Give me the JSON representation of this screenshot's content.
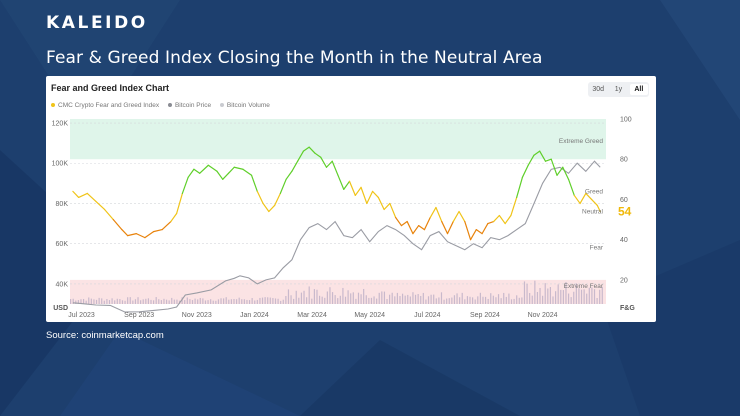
{
  "brand": {
    "logo_text": "KALEIDO"
  },
  "slide": {
    "headline": "Fear & Greed Index Closing the Month in the Neutral Area",
    "source": "Source: coinmarketcap.com"
  },
  "colors": {
    "background": "#1d3f6e",
    "fgi_line_low": "#e8830c",
    "fgi_line_mid": "#f0c419",
    "fgi_line_high": "#5fcf2a",
    "btc_price": "#9a9ca4",
    "btc_volume": "#c9b9cc",
    "extreme_greed_band": "#dff5ea",
    "extreme_fear_band": "#fbe3e4",
    "current_value": "#f0b90b"
  },
  "chart": {
    "title": "Fear and Greed Index Chart",
    "timeframes": [
      "30d",
      "1y",
      "All"
    ],
    "active_timeframe": "All",
    "legend": [
      {
        "label": "CMC Crypto Fear and Greed Index",
        "color": "#f0c419"
      },
      {
        "label": "Bitcoin Price",
        "color": "#8a8c93"
      },
      {
        "label": "Bitcoin Volume",
        "color": "#c9cbd0"
      }
    ],
    "current_value": "54",
    "left_axis_title": "USD",
    "right_axis_title": "F&G"
  },
  "chart_data": {
    "type": "line",
    "x_tick_labels": [
      "Jul 2023",
      "Sep 2023",
      "Nov 2023",
      "Jan 2024",
      "Mar 2024",
      "May 2024",
      "Jul 2024",
      "Sep 2024",
      "Nov 2024"
    ],
    "x_tick_months": [
      1,
      3,
      5,
      7,
      9,
      11,
      13,
      15,
      17
    ],
    "x_range_months": [
      0.6,
      19.2
    ],
    "y_left": {
      "label": "USD",
      "range": [
        30000,
        122000
      ],
      "ticks": [
        40000,
        60000,
        80000,
        100000,
        120000
      ],
      "tick_labels": [
        "40K",
        "60K",
        "80K",
        "100K",
        "120K"
      ]
    },
    "y_right": {
      "label": "F&G",
      "range": [
        8,
        100
      ],
      "ticks": [
        20,
        40,
        60,
        80,
        100
      ],
      "tick_labels": [
        "20",
        "40",
        "60",
        "80",
        "100"
      ]
    },
    "zones": [
      {
        "label": "Extreme Greed",
        "from": 80,
        "to": 100
      },
      {
        "label": "Greed",
        "at": 65
      },
      {
        "label": "Neutral",
        "at": 55
      },
      {
        "label": "Fear",
        "at": 38
      },
      {
        "label": "Extreme Fear",
        "from": 8,
        "to": 20
      }
    ],
    "series": [
      {
        "name": "CMC Crypto Fear and Greed Index",
        "axis": "right",
        "points": [
          [
            0.7,
            64
          ],
          [
            0.9,
            61
          ],
          [
            1.2,
            63
          ],
          [
            1.5,
            59
          ],
          [
            1.8,
            55
          ],
          [
            2.1,
            50
          ],
          [
            2.4,
            45
          ],
          [
            2.6,
            42
          ],
          [
            2.9,
            43
          ],
          [
            3.2,
            41
          ],
          [
            3.5,
            44
          ],
          [
            3.8,
            45
          ],
          [
            4.1,
            49
          ],
          [
            4.3,
            53
          ],
          [
            4.5,
            63
          ],
          [
            4.7,
            71
          ],
          [
            4.9,
            75
          ],
          [
            5.1,
            73
          ],
          [
            5.4,
            77
          ],
          [
            5.7,
            74
          ],
          [
            5.9,
            70
          ],
          [
            6.1,
            73
          ],
          [
            6.3,
            76
          ],
          [
            6.6,
            75
          ],
          [
            6.9,
            72
          ],
          [
            7.1,
            64
          ],
          [
            7.3,
            58
          ],
          [
            7.5,
            54
          ],
          [
            7.7,
            57
          ],
          [
            7.9,
            63
          ],
          [
            8.1,
            70
          ],
          [
            8.3,
            74
          ],
          [
            8.5,
            79
          ],
          [
            8.7,
            84
          ],
          [
            8.9,
            86
          ],
          [
            9.1,
            83
          ],
          [
            9.3,
            81
          ],
          [
            9.5,
            76
          ],
          [
            9.7,
            79
          ],
          [
            9.9,
            72
          ],
          [
            10.1,
            65
          ],
          [
            10.3,
            69
          ],
          [
            10.5,
            62
          ],
          [
            10.7,
            66
          ],
          [
            10.9,
            58
          ],
          [
            11.1,
            64
          ],
          [
            11.3,
            61
          ],
          [
            11.5,
            55
          ],
          [
            11.7,
            58
          ],
          [
            11.9,
            51
          ],
          [
            12.1,
            47
          ],
          [
            12.3,
            49
          ],
          [
            12.5,
            43
          ],
          [
            12.7,
            47
          ],
          [
            12.9,
            45
          ],
          [
            13.1,
            51
          ],
          [
            13.3,
            56
          ],
          [
            13.5,
            49
          ],
          [
            13.7,
            43
          ],
          [
            13.9,
            49
          ],
          [
            14.1,
            54
          ],
          [
            14.3,
            49
          ],
          [
            14.5,
            40
          ],
          [
            14.7,
            45
          ],
          [
            14.9,
            43
          ],
          [
            15.1,
            48
          ],
          [
            15.3,
            49
          ],
          [
            15.5,
            52
          ],
          [
            15.7,
            48
          ],
          [
            15.9,
            52
          ],
          [
            16.1,
            61
          ],
          [
            16.3,
            71
          ],
          [
            16.5,
            77
          ],
          [
            16.7,
            82
          ],
          [
            16.9,
            84
          ],
          [
            17.1,
            79
          ],
          [
            17.3,
            80
          ],
          [
            17.5,
            72
          ],
          [
            17.7,
            76
          ],
          [
            17.9,
            70
          ],
          [
            18.1,
            62
          ],
          [
            18.3,
            58
          ],
          [
            18.5,
            63
          ],
          [
            18.7,
            60
          ],
          [
            18.9,
            57
          ],
          [
            19.0,
            54
          ]
        ]
      },
      {
        "name": "Bitcoin Price",
        "axis": "left",
        "points": [
          [
            0.7,
            30600
          ],
          [
            1.0,
            30200
          ],
          [
            1.5,
            29500
          ],
          [
            2.0,
            29300
          ],
          [
            2.5,
            26000
          ],
          [
            3.0,
            26100
          ],
          [
            3.5,
            26800
          ],
          [
            4.0,
            27500
          ],
          [
            4.3,
            28500
          ],
          [
            4.6,
            34500
          ],
          [
            5.0,
            35500
          ],
          [
            5.5,
            37000
          ],
          [
            6.0,
            41500
          ],
          [
            6.3,
            42800
          ],
          [
            6.5,
            44000
          ],
          [
            6.8,
            43000
          ],
          [
            7.1,
            40000
          ],
          [
            7.4,
            42000
          ],
          [
            7.7,
            43000
          ],
          [
            8.0,
            48000
          ],
          [
            8.3,
            52000
          ],
          [
            8.6,
            62000
          ],
          [
            8.9,
            68000
          ],
          [
            9.2,
            70000
          ],
          [
            9.5,
            67000
          ],
          [
            9.8,
            71000
          ],
          [
            10.1,
            64000
          ],
          [
            10.4,
            63000
          ],
          [
            10.7,
            67000
          ],
          [
            11.0,
            61000
          ],
          [
            11.3,
            66000
          ],
          [
            11.6,
            69000
          ],
          [
            11.9,
            67000
          ],
          [
            12.2,
            64000
          ],
          [
            12.5,
            60000
          ],
          [
            12.8,
            57000
          ],
          [
            13.1,
            64000
          ],
          [
            13.4,
            66000
          ],
          [
            13.7,
            61000
          ],
          [
            14.0,
            59000
          ],
          [
            14.3,
            57000
          ],
          [
            14.6,
            60000
          ],
          [
            14.9,
            58000
          ],
          [
            15.2,
            63000
          ],
          [
            15.5,
            62000
          ],
          [
            15.8,
            64000
          ],
          [
            16.1,
            67000
          ],
          [
            16.4,
            70000
          ],
          [
            16.7,
            80000
          ],
          [
            17.0,
            90000
          ],
          [
            17.3,
            97000
          ],
          [
            17.6,
            98000
          ],
          [
            17.9,
            95000
          ],
          [
            18.2,
            100000
          ],
          [
            18.5,
            96000
          ],
          [
            18.8,
            101000
          ],
          [
            19.0,
            98000
          ]
        ]
      },
      {
        "name": "Bitcoin Volume",
        "axis": "volume",
        "note": "small bars along the bottom, rising sharply from Feb 2024 and late 2024"
      }
    ]
  }
}
